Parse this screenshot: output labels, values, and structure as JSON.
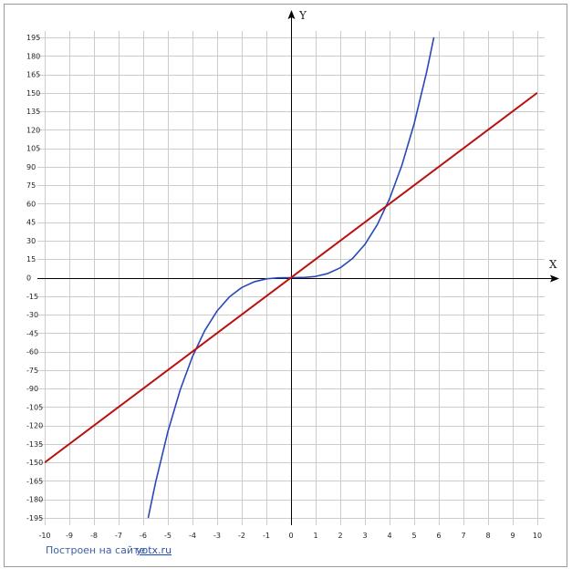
{
  "chart_data": {
    "type": "line",
    "xlim": [
      -10,
      10
    ],
    "ylim": [
      -195,
      195
    ],
    "x_ticks": [
      -10,
      -9,
      -8,
      -7,
      -6,
      -5,
      -4,
      -3,
      -2,
      -1,
      0,
      1,
      2,
      3,
      4,
      5,
      6,
      7,
      8,
      9,
      10
    ],
    "y_ticks": [
      -195,
      -180,
      -165,
      -150,
      -135,
      -120,
      -105,
      -90,
      -75,
      -60,
      -45,
      -30,
      -15,
      0,
      15,
      30,
      45,
      60,
      75,
      90,
      105,
      120,
      135,
      150,
      165,
      180,
      195
    ],
    "xlabel": "X",
    "ylabel": "Y",
    "grid": true,
    "series": [
      {
        "color": "#2848b8",
        "points": [
          [
            -5.8,
            -195.1
          ],
          [
            -5.5,
            -166.4
          ],
          [
            -5.0,
            -125.0
          ],
          [
            -4.5,
            -91.1
          ],
          [
            -4.0,
            -64.0
          ],
          [
            -3.5,
            -42.9
          ],
          [
            -3.0,
            -27.0
          ],
          [
            -2.5,
            -15.6
          ],
          [
            -2.0,
            -8.0
          ],
          [
            -1.5,
            -3.4
          ],
          [
            -1.0,
            -1.0
          ],
          [
            -0.5,
            -0.1
          ],
          [
            0,
            0
          ],
          [
            0.5,
            0.1
          ],
          [
            1.0,
            1.0
          ],
          [
            1.5,
            3.4
          ],
          [
            2.0,
            8.0
          ],
          [
            2.5,
            15.6
          ],
          [
            3.0,
            27.0
          ],
          [
            3.5,
            42.9
          ],
          [
            4.0,
            64.0
          ],
          [
            4.5,
            91.1
          ],
          [
            5.0,
            125.0
          ],
          [
            5.5,
            166.4
          ],
          [
            5.8,
            195.1
          ]
        ]
      },
      {
        "color": "#bb0f0f",
        "points": [
          [
            -10,
            -150
          ],
          [
            10,
            150
          ]
        ]
      }
    ]
  },
  "credit": {
    "text": "Построен на сайте",
    "link": "yotx.ru"
  },
  "colors": {
    "grid": "#cccccc",
    "frame": "#9a9a9a",
    "axis": "#000000"
  }
}
